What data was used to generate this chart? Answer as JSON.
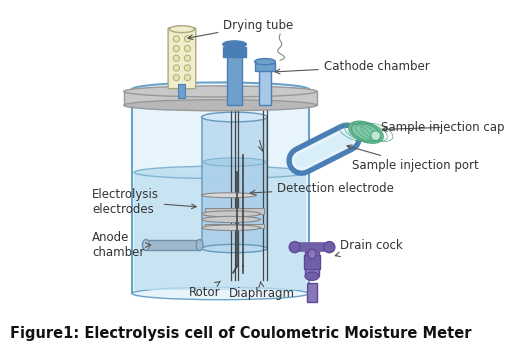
{
  "title": "Figure1: Electrolysis cell of Coulometric Moisture Meter",
  "title_fontsize": 10.5,
  "bg_color": "#ffffff",
  "labels": {
    "drying_tube": "Drying tube",
    "cathode_chamber": "Cathode chamber",
    "sample_injection_cap": "Sample injection cap",
    "sample_injection_port": "Sample injection port",
    "detection_electrode": "Detection electrode",
    "drain_cock": "Drain cock",
    "electrolysis_electrodes": "Electrolysis\nelectrodes",
    "anode_chamber": "Anode\nchamber",
    "rotor": "Rotor",
    "diaphragm": "Diaphragm"
  },
  "colors": {
    "vessel_fill": "#e8f4fc",
    "vessel_edge": "#6ba3c8",
    "liquid_fill": "#c0dff0",
    "liquid_fill2": "#a8cfe8",
    "liquid_edge": "#7ab0d0",
    "lid_fill": "#c8c8c8",
    "lid_edge": "#999999",
    "drying_tube_fill": "#f0edcc",
    "drying_tube_edge": "#aaa880",
    "tube_blue_dark": "#4a7fb5",
    "tube_blue_mid": "#6fa0cc",
    "tube_blue_light": "#a8c8e8",
    "inner_vessel_fill": "#b8d8f0",
    "inner_vessel_edge": "#6699bb",
    "electrode_fill": "#c8c8c8",
    "electrode_edge": "#888888",
    "anode_fill": "#b0b8c8",
    "cap_fill": "#a0d8c0",
    "cap_fill2": "#80c8a8",
    "cap_edge": "#50a880",
    "drain_fill": "#8878b8",
    "drain_fill2": "#7060a8",
    "drain_edge": "#604898",
    "wire_color": "#444444",
    "annot_color": "#333333",
    "arrow_color": "#555555"
  }
}
